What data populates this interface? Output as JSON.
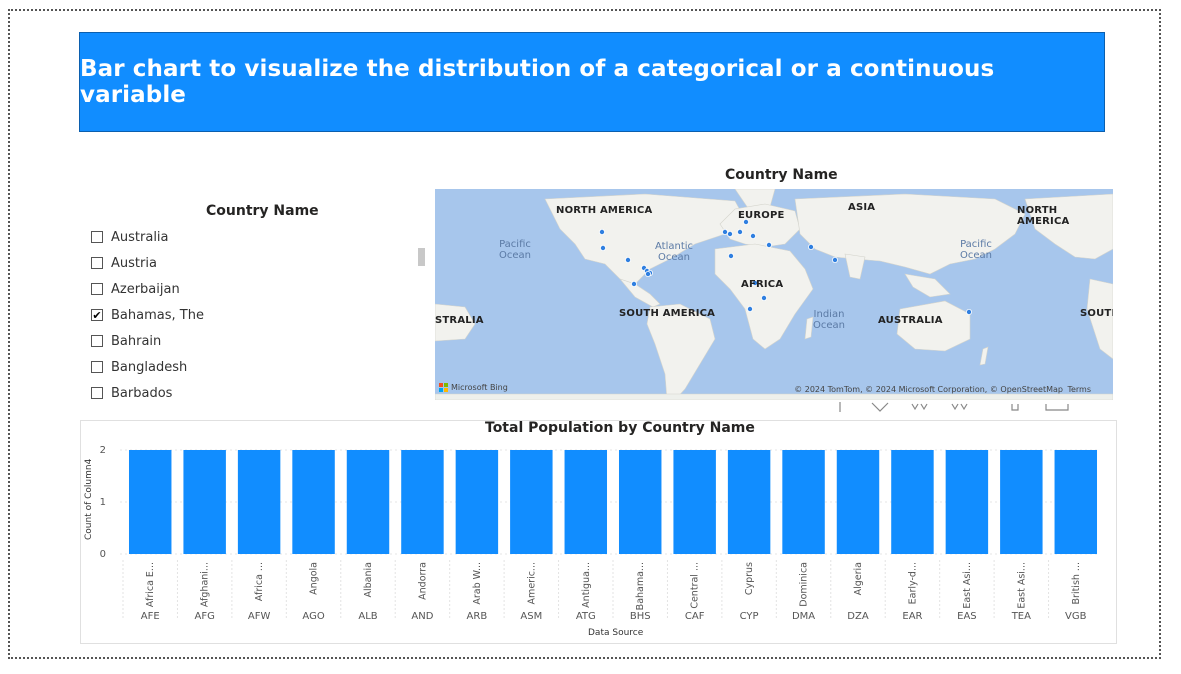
{
  "banner": {
    "title": "Bar chart to visualize the distribution of a categorical or a continuous variable"
  },
  "slicer": {
    "title": "Country Name",
    "items": [
      {
        "label": "Australia",
        "checked": false
      },
      {
        "label": "Austria",
        "checked": false
      },
      {
        "label": "Azerbaijan",
        "checked": false
      },
      {
        "label": "Bahamas, The",
        "checked": true
      },
      {
        "label": "Bahrain",
        "checked": false
      },
      {
        "label": "Bangladesh",
        "checked": false
      },
      {
        "label": "Barbados",
        "checked": false
      }
    ]
  },
  "map": {
    "title": "Country Name",
    "continents": [
      "NORTH AMERICA",
      "EUROPE",
      "ASIA",
      "NORTH AMERICA",
      "AFRICA",
      "SOUTH AMERICA",
      "AUSTRALIA",
      "STRALIA",
      "SOUTH"
    ],
    "oceans": [
      "Pacific Ocean",
      "Atlantic Ocean",
      "Indian Ocean",
      "Pacific Ocean"
    ],
    "attribution": "Microsoft Bing",
    "copyright": "© 2024 TomTom, © 2024 Microsoft Corporation, © OpenStreetMap",
    "terms": "Terms"
  },
  "colors": {
    "accent": "#118DFF",
    "map_water": "#A7C6EC",
    "map_land": "#F2F2EE",
    "point": "#2F7FE0"
  },
  "chart_data": {
    "type": "bar",
    "title": "Total Population by Country Name",
    "xlabel": "Data Source",
    "ylabel": "Count of Column4",
    "ylim": [
      0,
      2
    ],
    "yticks": [
      0,
      1,
      2
    ],
    "categories": [
      "AFE",
      "AFG",
      "AFW",
      "AGO",
      "ALB",
      "AND",
      "ARB",
      "ASM",
      "ATG",
      "BHS",
      "CAF",
      "CYP",
      "DMA",
      "DZA",
      "EAR",
      "EAS",
      "TEA",
      "VGB"
    ],
    "sublabels": [
      "Africa E...",
      "Afghani...",
      "Africa ...",
      "Angola",
      "Albania",
      "Andorra",
      "Arab W...",
      "Americ...",
      "Antigua...",
      "Bahama...",
      "Central ...",
      "Cyprus",
      "Dominica",
      "Algeria",
      "Early-d...",
      "East Asi...",
      "East Asi...",
      "British ..."
    ],
    "values": [
      2,
      2,
      2,
      2,
      2,
      2,
      2,
      2,
      2,
      2,
      2,
      2,
      2,
      2,
      2,
      2,
      2,
      2
    ]
  }
}
